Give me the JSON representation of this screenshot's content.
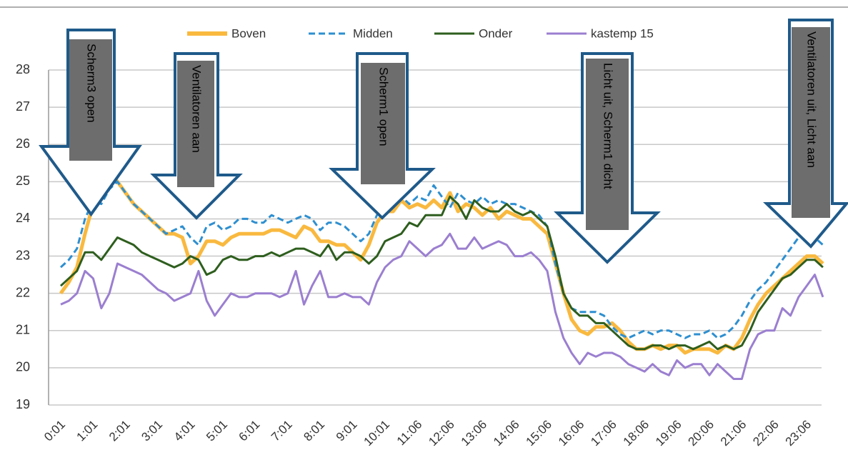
{
  "chart_data": {
    "type": "line",
    "categories": [
      "0:01",
      null,
      null,
      null,
      "1:01",
      null,
      null,
      null,
      "2:01",
      null,
      null,
      null,
      "3:01",
      null,
      null,
      null,
      "4:01",
      null,
      null,
      null,
      "5:01",
      null,
      null,
      null,
      "6:01",
      null,
      null,
      null,
      "7:01",
      null,
      null,
      null,
      "8:01",
      null,
      null,
      null,
      "9:01",
      null,
      null,
      null,
      "10:01",
      null,
      null,
      null,
      "11:06",
      null,
      null,
      null,
      "12:06",
      null,
      null,
      null,
      "13:06",
      null,
      null,
      null,
      "14:06",
      null,
      null,
      null,
      "15:06",
      null,
      null,
      null,
      "16:06",
      null,
      null,
      null,
      "17:06",
      null,
      null,
      null,
      "18:06",
      null,
      null,
      null,
      "19:06",
      null,
      null,
      null,
      "20:06",
      null,
      null,
      null,
      "21:06",
      null,
      null,
      null,
      "22:06",
      null,
      null,
      null,
      "23:06",
      null,
      null
    ],
    "series": [
      {
        "name": "Boven",
        "color": "#f9b93f",
        "values": [
          22.0,
          22.3,
          22.7,
          23.6,
          24.4,
          24.8,
          25.3,
          25.0,
          24.7,
          24.4,
          24.2,
          24.0,
          23.8,
          23.6,
          23.6,
          23.5,
          22.8,
          23.0,
          23.4,
          23.4,
          23.3,
          23.5,
          23.6,
          23.6,
          23.6,
          23.6,
          23.7,
          23.7,
          23.6,
          23.5,
          23.8,
          23.7,
          23.4,
          23.4,
          23.3,
          23.3,
          23.1,
          22.9,
          23.3,
          23.9,
          24.2,
          24.2,
          24.5,
          24.3,
          24.4,
          24.3,
          24.5,
          24.3,
          24.7,
          24.2,
          24.4,
          24.3,
          24.1,
          24.3,
          24.0,
          24.2,
          24.1,
          24.0,
          24.0,
          23.8,
          23.6,
          22.8,
          22.0,
          21.3,
          21.0,
          20.9,
          21.1,
          21.1,
          21.2,
          21.0,
          20.7,
          20.5,
          20.5,
          20.6,
          20.5,
          20.6,
          20.6,
          20.4,
          20.5,
          20.5,
          20.5,
          20.4,
          20.6,
          20.5,
          20.8,
          21.3,
          21.7,
          22.0,
          22.2,
          22.4,
          22.6,
          22.8,
          23.0,
          23.0,
          22.8
        ]
      },
      {
        "name": "Midden",
        "color": "#2e8fd0",
        "dashed": true,
        "values": [
          22.7,
          22.9,
          23.2,
          24.0,
          24.5,
          24.4,
          24.8,
          25.0,
          24.7,
          24.4,
          24.2,
          24.0,
          23.8,
          23.6,
          23.7,
          23.8,
          23.5,
          23.3,
          23.8,
          23.9,
          23.7,
          23.8,
          24.0,
          24.0,
          23.9,
          23.9,
          24.1,
          24.0,
          23.9,
          24.0,
          24.1,
          24.0,
          23.7,
          23.9,
          23.9,
          23.8,
          23.6,
          23.4,
          23.6,
          24.1,
          24.3,
          24.4,
          24.6,
          24.4,
          24.6,
          24.5,
          24.9,
          24.6,
          24.3,
          24.7,
          24.5,
          24.4,
          24.6,
          24.4,
          24.5,
          24.4,
          24.4,
          24.3,
          24.2,
          24.1,
          23.8,
          22.8,
          22.0,
          21.6,
          21.5,
          21.5,
          21.5,
          21.4,
          21.1,
          20.9,
          20.8,
          20.9,
          21.0,
          20.9,
          21.0,
          21.0,
          20.9,
          20.8,
          20.9,
          20.9,
          21.0,
          20.8,
          20.9,
          21.1,
          21.4,
          21.8,
          22.1,
          22.3,
          22.6,
          22.9,
          23.2,
          23.5,
          23.6,
          23.5,
          23.3
        ]
      },
      {
        "name": "Onder",
        "color": "#2e5e1e",
        "values": [
          22.2,
          22.4,
          22.6,
          23.1,
          23.1,
          22.9,
          23.2,
          23.5,
          23.4,
          23.3,
          23.1,
          23.0,
          22.9,
          22.8,
          22.7,
          22.8,
          23.0,
          22.9,
          22.5,
          22.6,
          22.9,
          23.0,
          22.9,
          22.9,
          23.0,
          23.0,
          23.1,
          23.0,
          23.1,
          23.2,
          23.2,
          23.1,
          23.0,
          23.3,
          22.9,
          23.1,
          23.1,
          23.0,
          22.8,
          23.0,
          23.4,
          23.5,
          23.6,
          23.9,
          23.8,
          24.1,
          24.1,
          24.1,
          24.6,
          24.4,
          24.0,
          24.5,
          24.3,
          24.2,
          24.2,
          24.4,
          24.2,
          24.1,
          24.2,
          24.0,
          23.8,
          23.0,
          22.0,
          21.6,
          21.4,
          21.4,
          21.2,
          21.2,
          21.0,
          20.8,
          20.6,
          20.5,
          20.5,
          20.6,
          20.6,
          20.5,
          20.6,
          20.6,
          20.5,
          20.6,
          20.7,
          20.5,
          20.6,
          20.5,
          20.6,
          21.0,
          21.5,
          21.8,
          22.1,
          22.4,
          22.5,
          22.7,
          22.9,
          22.9,
          22.7
        ]
      },
      {
        "name": "kastemp 15",
        "color": "#9b7fd0",
        "values": [
          21.7,
          21.8,
          22.0,
          22.6,
          22.4,
          21.6,
          22.0,
          22.8,
          22.7,
          22.6,
          22.5,
          22.3,
          22.1,
          22.0,
          21.8,
          21.9,
          22.0,
          22.6,
          21.8,
          21.4,
          21.7,
          22.0,
          21.9,
          21.9,
          22.0,
          22.0,
          22.0,
          21.9,
          22.0,
          22.6,
          21.7,
          22.2,
          22.6,
          21.9,
          21.9,
          22.0,
          21.9,
          21.9,
          21.7,
          22.3,
          22.7,
          22.9,
          23.0,
          23.4,
          23.2,
          23.0,
          23.2,
          23.3,
          23.6,
          23.2,
          23.2,
          23.5,
          23.2,
          23.3,
          23.4,
          23.3,
          23.0,
          23.0,
          23.1,
          22.9,
          22.6,
          21.5,
          20.8,
          20.4,
          20.1,
          20.4,
          20.3,
          20.4,
          20.4,
          20.3,
          20.1,
          20.0,
          19.9,
          20.1,
          19.9,
          19.8,
          20.2,
          20.0,
          20.1,
          20.1,
          19.8,
          20.1,
          19.9,
          19.7,
          19.7,
          20.5,
          20.9,
          21.0,
          21.0,
          21.6,
          21.4,
          21.9,
          22.2,
          22.5,
          21.9
        ]
      }
    ],
    "ylim": [
      19,
      28
    ],
    "yticks": [
      19,
      20,
      21,
      22,
      23,
      24,
      25,
      26,
      27,
      28
    ],
    "grid": true,
    "legend": "top",
    "annotations": [
      "Scherm3 open",
      "Ventilatoren aan",
      "Scherm1 open",
      "Licht uit, Scherm1 dicht",
      "Ventilatoren uit, Licht aan"
    ]
  }
}
